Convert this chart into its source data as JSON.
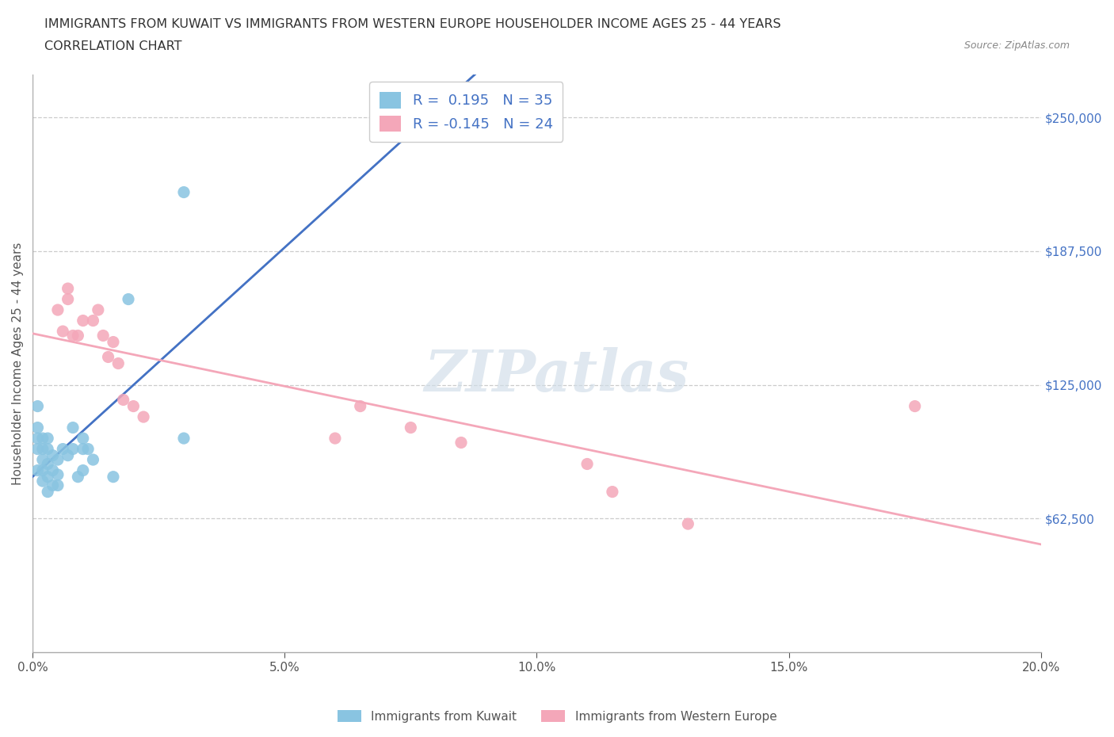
{
  "title_line1": "IMMIGRANTS FROM KUWAIT VS IMMIGRANTS FROM WESTERN EUROPE HOUSEHOLDER INCOME AGES 25 - 44 YEARS",
  "title_line2": "CORRELATION CHART",
  "source_text": "Source: ZipAtlas.com",
  "ylabel": "Householder Income Ages 25 - 44 years",
  "xlim": [
    0,
    0.2
  ],
  "ylim": [
    0,
    270000
  ],
  "yticks": [
    62500,
    125000,
    187500,
    250000
  ],
  "ytick_labels": [
    "$62,500",
    "$125,000",
    "$187,500",
    "$250,000"
  ],
  "xtick_labels": [
    "0.0%",
    "5.0%",
    "10.0%",
    "15.0%",
    "20.0%"
  ],
  "xticks": [
    0.0,
    0.05,
    0.1,
    0.15,
    0.2
  ],
  "kuwait_color": "#89c4e1",
  "western_europe_color": "#f4a7b9",
  "kuwait_R": 0.195,
  "kuwait_N": 35,
  "western_europe_R": -0.145,
  "western_europe_N": 24,
  "watermark": "ZIPatlas",
  "legend_label_kuwait": "Immigrants from Kuwait",
  "legend_label_we": "Immigrants from Western Europe",
  "kuwait_x": [
    0.001,
    0.001,
    0.001,
    0.001,
    0.001,
    0.002,
    0.002,
    0.002,
    0.002,
    0.002,
    0.003,
    0.003,
    0.003,
    0.003,
    0.003,
    0.004,
    0.004,
    0.004,
    0.005,
    0.005,
    0.005,
    0.006,
    0.007,
    0.008,
    0.008,
    0.009,
    0.01,
    0.01,
    0.01,
    0.011,
    0.012,
    0.016,
    0.019,
    0.03,
    0.03
  ],
  "kuwait_y": [
    85000,
    95000,
    100000,
    105000,
    115000,
    80000,
    85000,
    90000,
    95000,
    100000,
    75000,
    82000,
    88000,
    95000,
    100000,
    78000,
    85000,
    92000,
    78000,
    83000,
    90000,
    95000,
    92000,
    95000,
    105000,
    82000,
    85000,
    95000,
    100000,
    95000,
    90000,
    82000,
    165000,
    215000,
    100000
  ],
  "we_x": [
    0.005,
    0.006,
    0.007,
    0.007,
    0.008,
    0.009,
    0.01,
    0.012,
    0.013,
    0.014,
    0.015,
    0.016,
    0.017,
    0.018,
    0.02,
    0.022,
    0.06,
    0.065,
    0.075,
    0.085,
    0.11,
    0.115,
    0.13,
    0.175
  ],
  "we_y": [
    160000,
    150000,
    170000,
    165000,
    148000,
    148000,
    155000,
    155000,
    160000,
    148000,
    138000,
    145000,
    135000,
    118000,
    115000,
    110000,
    100000,
    115000,
    105000,
    98000,
    88000,
    75000,
    60000,
    115000
  ]
}
